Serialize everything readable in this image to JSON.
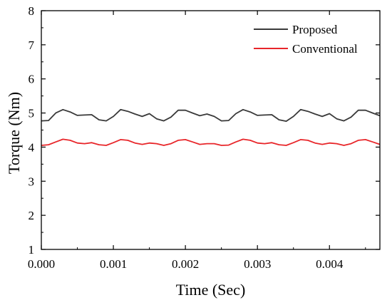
{
  "chart_data": {
    "type": "line",
    "xlabel": "Time (Sec)",
    "ylabel": "Torque (Nm)",
    "xlim": [
      0,
      0.0047
    ],
    "ylim": [
      1,
      8
    ],
    "x_ticks": [
      0,
      0.001,
      0.002,
      0.003,
      0.004
    ],
    "x_tick_labels": [
      "0.000",
      "0.001",
      "0.002",
      "0.003",
      "0.004"
    ],
    "y_ticks": [
      1,
      2,
      3,
      4,
      5,
      6,
      7,
      8
    ],
    "y_tick_labels": [
      "1",
      "2",
      "3",
      "4",
      "5",
      "6",
      "7",
      "8"
    ],
    "grid": false,
    "legend_position": "top-right",
    "series": [
      {
        "name": "Proposed",
        "color": "#3a3a3a",
        "x": [
          0.0,
          0.0001,
          0.0002,
          0.0003,
          0.0004,
          0.0005,
          0.0006,
          0.0007,
          0.0008,
          0.0009,
          0.001,
          0.0011,
          0.0012,
          0.0013,
          0.0014,
          0.0015,
          0.0016,
          0.0017,
          0.0018,
          0.0019,
          0.002,
          0.0021,
          0.0022,
          0.0023,
          0.0024,
          0.0025,
          0.0026,
          0.0027,
          0.0028,
          0.0029,
          0.003,
          0.0031,
          0.0032,
          0.0033,
          0.0034,
          0.0035,
          0.0036,
          0.0037,
          0.0038,
          0.0039,
          0.004,
          0.0041,
          0.0042,
          0.0043,
          0.0044,
          0.0045,
          0.0046,
          0.0047
        ],
        "values": [
          4.77,
          4.78,
          5.0,
          5.1,
          5.03,
          4.93,
          4.94,
          4.95,
          4.8,
          4.77,
          4.9,
          5.1,
          5.05,
          4.97,
          4.9,
          4.98,
          4.83,
          4.77,
          4.88,
          5.08,
          5.08,
          5.0,
          4.92,
          4.97,
          4.9,
          4.77,
          4.78,
          4.98,
          5.1,
          5.03,
          4.93,
          4.94,
          4.95,
          4.8,
          4.76,
          4.9,
          5.1,
          5.05,
          4.97,
          4.9,
          4.98,
          4.83,
          4.77,
          4.88,
          5.08,
          5.08,
          5.0,
          4.92
        ]
      },
      {
        "name": "Conventional",
        "color": "#e8262a",
        "x": [
          0.0,
          0.0001,
          0.0002,
          0.0003,
          0.0004,
          0.0005,
          0.0006,
          0.0007,
          0.0008,
          0.0009,
          0.001,
          0.0011,
          0.0012,
          0.0013,
          0.0014,
          0.0015,
          0.0016,
          0.0017,
          0.0018,
          0.0019,
          0.002,
          0.0021,
          0.0022,
          0.0023,
          0.0024,
          0.0025,
          0.0026,
          0.0027,
          0.0028,
          0.0029,
          0.003,
          0.0031,
          0.0032,
          0.0033,
          0.0034,
          0.0035,
          0.0036,
          0.0037,
          0.0038,
          0.0039,
          0.004,
          0.0041,
          0.0042,
          0.0043,
          0.0044,
          0.0045,
          0.0046,
          0.0047
        ],
        "values": [
          4.05,
          4.07,
          4.15,
          4.23,
          4.2,
          4.12,
          4.1,
          4.13,
          4.07,
          4.05,
          4.13,
          4.22,
          4.2,
          4.12,
          4.08,
          4.12,
          4.1,
          4.05,
          4.1,
          4.2,
          4.22,
          4.15,
          4.08,
          4.1,
          4.1,
          4.05,
          4.06,
          4.15,
          4.23,
          4.2,
          4.12,
          4.1,
          4.13,
          4.07,
          4.05,
          4.13,
          4.22,
          4.2,
          4.12,
          4.08,
          4.12,
          4.1,
          4.05,
          4.1,
          4.2,
          4.22,
          4.15,
          4.08
        ]
      }
    ]
  }
}
